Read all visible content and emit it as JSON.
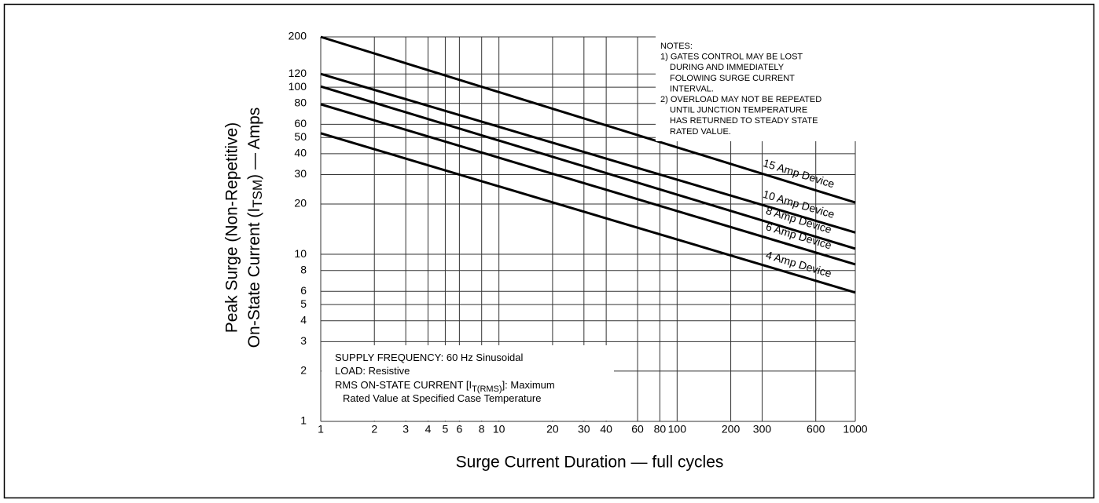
{
  "chart_data": {
    "type": "line",
    "xlabel": "Surge Current Duration — full cycles",
    "ylabel": {
      "line1": "Peak Surge (Non-Repetitive)",
      "line2_start": "On-State Current (I",
      "line2_sub": "TSM",
      "line2_end": ") — Amps"
    },
    "xscale": "log",
    "yscale": "log",
    "grid": true,
    "xlim": [
      1,
      1000
    ],
    "ylim": [
      1,
      200
    ],
    "xticks": [
      1,
      2,
      3,
      4,
      5,
      6,
      8,
      10,
      20,
      30,
      40,
      60,
      80,
      100,
      200,
      300,
      600,
      1000
    ],
    "yticks": [
      1,
      2,
      3,
      4,
      5,
      6,
      8,
      10,
      20,
      30,
      40,
      50,
      60,
      80,
      100,
      120,
      200
    ],
    "x": [
      1,
      1000
    ],
    "series": [
      {
        "name": "15 Amp Device",
        "color": "#000000",
        "values": [
          200,
          20.4
        ]
      },
      {
        "name": "10 Amp Device",
        "color": "#000000",
        "values": [
          120,
          13.5
        ]
      },
      {
        "name": "8 Amp Device",
        "color": "#000000",
        "values": [
          101,
          10.8
        ]
      },
      {
        "name": "6 Amp Device",
        "color": "#000000",
        "values": [
          79,
          8.7
        ]
      },
      {
        "name": "4 Amp Device",
        "color": "#000000",
        "values": [
          53,
          5.9
        ]
      }
    ],
    "notes": [
      "NOTES:",
      "1) GATES CONTROL MAY BE LOST",
      "DURING AND IMMEDIATELY",
      "FOLOWING SURGE CURRENT",
      "INTERVAL.",
      "2) OVERLOAD MAY NOT BE REPEATED",
      "UNTIL JUNCTION TEMPERATURE",
      "HAS RETURNED TO STEADY STATE",
      "RATED VALUE."
    ],
    "conditions": {
      "line1": "SUPPLY FREQUENCY: 60 Hz Sinusoidal",
      "line2": "LOAD: Resistive",
      "line3_start": "RMS ON-STATE CURRENT [I",
      "line3_sub": "T(RMS)",
      "line3_end": "]: Maximum",
      "line4": "Rated Value at Specified Case Temperature"
    }
  }
}
